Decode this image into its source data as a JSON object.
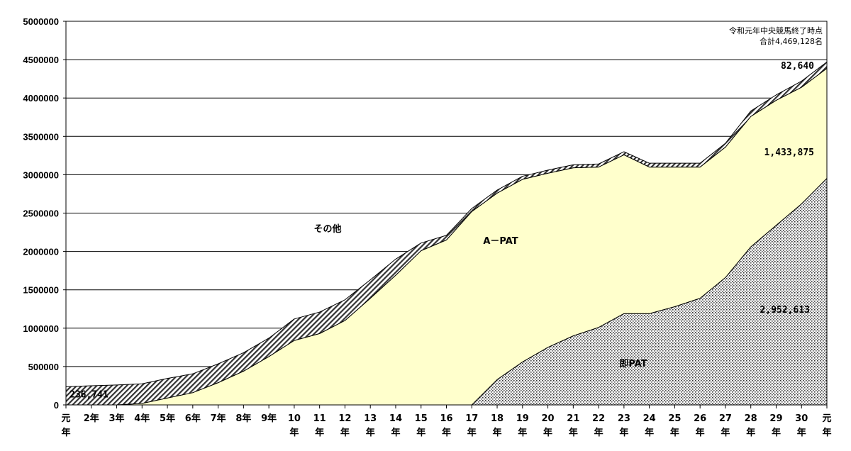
{
  "chart_data": {
    "type": "area",
    "stacked": true,
    "ylim": [
      0,
      5000000
    ],
    "yticks": [
      "0",
      "500000",
      "1000000",
      "1500000",
      "2000000",
      "2500000",
      "3000000",
      "3500000",
      "4000000",
      "4500000",
      "5000000"
    ],
    "grid": "horizontal",
    "categories": [
      [
        "元",
        "年"
      ],
      [
        "2年",
        ""
      ],
      [
        "3年",
        ""
      ],
      [
        "4年",
        ""
      ],
      [
        "5年",
        ""
      ],
      [
        "6年",
        ""
      ],
      [
        "7年",
        ""
      ],
      [
        "8年",
        ""
      ],
      [
        "9年",
        ""
      ],
      [
        "10",
        "年"
      ],
      [
        "11",
        "年"
      ],
      [
        "12",
        "年"
      ],
      [
        "13",
        "年"
      ],
      [
        "14",
        "年"
      ],
      [
        "15",
        "年"
      ],
      [
        "16",
        "年"
      ],
      [
        "17",
        "年"
      ],
      [
        "18",
        "年"
      ],
      [
        "19",
        "年"
      ],
      [
        "20",
        "年"
      ],
      [
        "21",
        "年"
      ],
      [
        "22",
        "年"
      ],
      [
        "23",
        "年"
      ],
      [
        "24",
        "年"
      ],
      [
        "25",
        "年"
      ],
      [
        "26",
        "年"
      ],
      [
        "27",
        "年"
      ],
      [
        "28",
        "年"
      ],
      [
        "29",
        "年"
      ],
      [
        "30",
        "年"
      ],
      [
        "元",
        "年"
      ]
    ],
    "series": [
      {
        "name": "即PAT",
        "pattern": "dots",
        "values": [
          0,
          0,
          0,
          0,
          0,
          0,
          0,
          0,
          0,
          0,
          0,
          0,
          0,
          0,
          0,
          0,
          0,
          330000,
          560000,
          750000,
          900000,
          1010000,
          1190000,
          1190000,
          1280000,
          1390000,
          1660000,
          2060000,
          2340000,
          2620000,
          2952613
        ]
      },
      {
        "name": "A－PAT",
        "color": "#ffffcc",
        "values": [
          0,
          0,
          0,
          20000,
          90000,
          160000,
          290000,
          440000,
          630000,
          840000,
          930000,
          1100000,
          1390000,
          1690000,
          2010000,
          2150000,
          2520000,
          2430000,
          2380000,
          2270000,
          2190000,
          2090000,
          2070000,
          1910000,
          1820000,
          1710000,
          1700000,
          1700000,
          1630000,
          1520000,
          1433875
        ]
      },
      {
        "name": "その他",
        "pattern": "hatch",
        "values": [
          236741,
          250000,
          260000,
          255000,
          255000,
          245000,
          245000,
          240000,
          240000,
          280000,
          280000,
          270000,
          240000,
          210000,
          100000,
          60000,
          40000,
          40000,
          40000,
          40000,
          40000,
          40000,
          40000,
          50000,
          50000,
          50000,
          50000,
          70000,
          70000,
          80000,
          82640
        ]
      }
    ],
    "annotations": {
      "other_start": "236,741",
      "other_end": "82,640",
      "apat_end": "1,433,875",
      "soku_end": "2,952,613",
      "label_other": "その他",
      "label_apat": "A－PAT",
      "label_soku": "即PAT",
      "note_line1": "令和元年中央競馬終了時点",
      "note_line2": "合計4,469,128名"
    }
  }
}
